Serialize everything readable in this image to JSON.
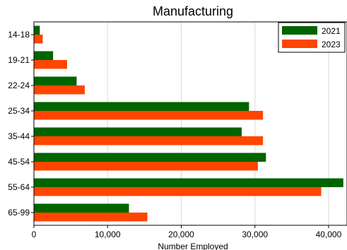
{
  "chart_data": {
    "type": "bar",
    "orientation": "horizontal",
    "title": "Manufacturing",
    "xlabel": "Number Employed",
    "ylabel": "",
    "xlim": [
      0,
      42500
    ],
    "xticks": [
      0,
      10000,
      20000,
      30000,
      40000
    ],
    "xtick_labels": [
      "0",
      "10,000",
      "20,000",
      "30,000",
      "40,000"
    ],
    "grid": "vertical",
    "legend_position": "top-right",
    "categories": [
      "14-18",
      "19-21",
      "22-24",
      "25-34",
      "35-44",
      "45-54",
      "55-64",
      "65-99"
    ],
    "series": [
      {
        "name": "2021",
        "color": "#006400",
        "values": [
          800,
          2600,
          5800,
          29200,
          28200,
          31500,
          42000,
          12900
        ]
      },
      {
        "name": "2023",
        "color": "#ff4500",
        "values": [
          1200,
          4500,
          6900,
          31100,
          31100,
          30400,
          39000,
          15400
        ]
      }
    ]
  }
}
